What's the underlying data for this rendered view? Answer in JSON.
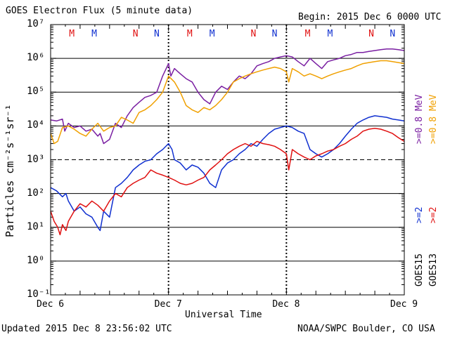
{
  "header": {
    "title": "GOES Electron Flux (5 minute data)",
    "begin": "Begin: 2015 Dec 6 0000 UTC"
  },
  "footer": {
    "updated": "Updated 2015 Dec  8 23:56:02 UTC",
    "credit": "NOAA/SWPC Boulder, CO USA"
  },
  "colors": {
    "goes15_08": "#7a1fa2",
    "goes13_08": "#f0a000",
    "goes15_2": "#1030d0",
    "goes13_2": "#e01010",
    "grid": "#000000"
  },
  "chart_data": {
    "type": "line",
    "title": "GOES Electron Flux (5 minute data)",
    "xlabel": "Universal Time",
    "ylabel": "Particles cm⁻²s⁻¹sr⁻¹",
    "yscale": "log",
    "ylim": [
      0.1,
      10000000
    ],
    "xlim": [
      0,
      3
    ],
    "x_ticks": [
      {
        "x": 0,
        "label": "Dec 6"
      },
      {
        "x": 1,
        "label": "Dec 7"
      },
      {
        "x": 2,
        "label": "Dec 8"
      },
      {
        "x": 3,
        "label": "Dec 9"
      }
    ],
    "y_tick_labels": [
      {
        "exp": -1,
        "label": "10⁻¹"
      },
      {
        "exp": 0,
        "label": "10⁰"
      },
      {
        "exp": 1,
        "label": "10¹"
      },
      {
        "exp": 2,
        "label": "10²"
      },
      {
        "exp": 3,
        "label": "10³"
      },
      {
        "exp": 4,
        "label": "10⁴"
      },
      {
        "exp": 5,
        "label": "10⁵"
      },
      {
        "exp": 6,
        "label": "10⁶"
      },
      {
        "exp": 7,
        "label": "10⁷"
      }
    ],
    "threshold": 1000,
    "markers": [
      {
        "x": 0.18,
        "label": "M",
        "sat": "GOES13"
      },
      {
        "x": 0.37,
        "label": "M",
        "sat": "GOES15"
      },
      {
        "x": 0.72,
        "label": "N",
        "sat": "GOES13"
      },
      {
        "x": 0.9,
        "label": "N",
        "sat": "GOES15"
      },
      {
        "x": 1.18,
        "label": "M",
        "sat": "GOES13"
      },
      {
        "x": 1.37,
        "label": "M",
        "sat": "GOES15"
      },
      {
        "x": 1.72,
        "label": "N",
        "sat": "GOES13"
      },
      {
        "x": 1.9,
        "label": "N",
        "sat": "GOES15"
      },
      {
        "x": 2.18,
        "label": "M",
        "sat": "GOES13"
      },
      {
        "x": 2.37,
        "label": "M",
        "sat": "GOES15"
      },
      {
        "x": 2.72,
        "label": "N",
        "sat": "GOES13"
      },
      {
        "x": 2.9,
        "label": "N",
        "sat": "GOES15"
      }
    ],
    "legend": {
      "labels": [
        {
          "text": ">=0.8  MeV",
          "color": "#7a1fa2"
        },
        {
          "text": ">=0.8  MeV",
          "color": "#f0a000"
        },
        {
          "text": ">=2",
          "color": "#1030d0"
        },
        {
          "text": ">=2",
          "color": "#e01010"
        }
      ],
      "sats": [
        "GOES15",
        "GOES13"
      ]
    },
    "series": [
      {
        "name": "GOES15 >=0.8 MeV",
        "color": "#7a1fa2",
        "x": [
          0,
          0.05,
          0.1,
          0.12,
          0.15,
          0.2,
          0.25,
          0.3,
          0.35,
          0.4,
          0.42,
          0.45,
          0.5,
          0.55,
          0.6,
          0.65,
          0.7,
          0.75,
          0.8,
          0.85,
          0.9,
          0.95,
          1.0,
          1.02,
          1.05,
          1.1,
          1.15,
          1.2,
          1.25,
          1.3,
          1.35,
          1.4,
          1.45,
          1.5,
          1.55,
          1.6,
          1.65,
          1.7,
          1.75,
          1.8,
          1.85,
          1.9,
          1.95,
          2.0,
          2.05,
          2.1,
          2.15,
          2.2,
          2.25,
          2.3,
          2.35,
          2.4,
          2.45,
          2.5,
          2.55,
          2.6,
          2.65,
          2.7,
          2.75,
          2.8,
          2.85,
          2.9,
          2.95,
          3.0
        ],
        "y": [
          15000,
          14000,
          16000,
          7000,
          12000,
          9000,
          10000,
          7000,
          8000,
          5000,
          6000,
          3000,
          4000,
          12000,
          9000,
          20000,
          35000,
          50000,
          70000,
          80000,
          100000,
          300000,
          700000,
          300000,
          500000,
          350000,
          250000,
          200000,
          100000,
          60000,
          45000,
          100000,
          150000,
          120000,
          200000,
          300000,
          250000,
          350000,
          600000,
          700000,
          800000,
          1000000,
          1100000,
          1200000,
          1100000,
          800000,
          600000,
          1000000,
          700000,
          500000,
          800000,
          900000,
          1000000,
          1200000,
          1300000,
          1500000,
          1500000,
          1600000,
          1700000,
          1800000,
          1900000,
          1900000,
          1800000,
          1700000
        ]
      },
      {
        "name": "GOES13 >=0.8 MeV",
        "color": "#f0a000",
        "x": [
          0,
          0.03,
          0.06,
          0.1,
          0.15,
          0.2,
          0.25,
          0.3,
          0.35,
          0.4,
          0.45,
          0.5,
          0.55,
          0.6,
          0.65,
          0.7,
          0.75,
          0.8,
          0.85,
          0.9,
          0.95,
          1.0,
          1.05,
          1.1,
          1.15,
          1.2,
          1.25,
          1.3,
          1.35,
          1.4,
          1.45,
          1.5,
          1.55,
          1.6,
          1.65,
          1.7,
          1.75,
          1.8,
          1.85,
          1.9,
          1.95,
          2.0,
          2.02,
          2.05,
          2.1,
          2.15,
          2.2,
          2.25,
          2.3,
          2.35,
          2.4,
          2.45,
          2.5,
          2.55,
          2.6,
          2.65,
          2.7,
          2.75,
          2.8,
          2.85,
          2.9,
          2.95,
          3.0
        ],
        "y": [
          6000,
          3000,
          3500,
          9000,
          10000,
          8000,
          6000,
          5000,
          8000,
          12000,
          7000,
          9000,
          10000,
          18000,
          15000,
          12000,
          25000,
          30000,
          40000,
          60000,
          100000,
          300000,
          200000,
          100000,
          40000,
          30000,
          25000,
          35000,
          30000,
          40000,
          60000,
          100000,
          200000,
          250000,
          300000,
          350000,
          400000,
          450000,
          500000,
          550000,
          500000,
          400000,
          200000,
          500000,
          400000,
          300000,
          350000,
          300000,
          250000,
          300000,
          350000,
          400000,
          450000,
          500000,
          600000,
          700000,
          750000,
          800000,
          850000,
          850000,
          800000,
          750000,
          700000
        ]
      },
      {
        "name": "GOES15 >=2",
        "color": "#1030d0",
        "x": [
          0,
          0.05,
          0.1,
          0.13,
          0.15,
          0.2,
          0.25,
          0.3,
          0.35,
          0.4,
          0.42,
          0.45,
          0.5,
          0.55,
          0.6,
          0.65,
          0.7,
          0.75,
          0.8,
          0.85,
          0.9,
          0.95,
          1.0,
          1.03,
          1.05,
          1.1,
          1.15,
          1.2,
          1.25,
          1.3,
          1.35,
          1.4,
          1.45,
          1.5,
          1.55,
          1.6,
          1.65,
          1.7,
          1.75,
          1.8,
          1.85,
          1.9,
          1.95,
          2.0,
          2.05,
          2.1,
          2.15,
          2.2,
          2.25,
          2.3,
          2.35,
          2.4,
          2.45,
          2.5,
          2.55,
          2.6,
          2.65,
          2.7,
          2.75,
          2.8,
          2.85,
          2.9,
          2.95,
          3.0
        ],
        "y": [
          150,
          120,
          80,
          100,
          60,
          30,
          40,
          25,
          20,
          10,
          8,
          30,
          20,
          150,
          200,
          300,
          500,
          700,
          900,
          1000,
          1500,
          2000,
          3000,
          2000,
          1000,
          800,
          500,
          700,
          600,
          400,
          200,
          150,
          500,
          800,
          1000,
          1500,
          2000,
          3000,
          2500,
          4000,
          6000,
          8000,
          9000,
          10000,
          9000,
          7000,
          6000,
          2000,
          1500,
          1200,
          1500,
          2000,
          3000,
          5000,
          8000,
          12000,
          15000,
          18000,
          20000,
          19000,
          18000,
          16000,
          15000,
          14000
        ]
      },
      {
        "name": "GOES13 >=2",
        "color": "#e01010",
        "x": [
          0,
          0.03,
          0.06,
          0.08,
          0.1,
          0.13,
          0.15,
          0.2,
          0.25,
          0.3,
          0.35,
          0.4,
          0.45,
          0.5,
          0.55,
          0.6,
          0.65,
          0.7,
          0.75,
          0.8,
          0.85,
          0.9,
          0.95,
          1.0,
          1.05,
          1.1,
          1.15,
          1.2,
          1.25,
          1.3,
          1.35,
          1.4,
          1.45,
          1.5,
          1.55,
          1.6,
          1.65,
          1.7,
          1.75,
          1.8,
          1.85,
          1.9,
          1.95,
          2.0,
          2.02,
          2.05,
          2.1,
          2.15,
          2.2,
          2.25,
          2.3,
          2.35,
          2.4,
          2.45,
          2.5,
          2.55,
          2.6,
          2.65,
          2.7,
          2.75,
          2.8,
          2.85,
          2.9,
          2.95,
          3.0
        ],
        "y": [
          30,
          15,
          10,
          6,
          12,
          8,
          15,
          30,
          50,
          40,
          60,
          45,
          30,
          60,
          100,
          80,
          150,
          200,
          250,
          300,
          500,
          400,
          350,
          300,
          250,
          200,
          180,
          200,
          250,
          300,
          500,
          700,
          1000,
          1500,
          2000,
          2500,
          3000,
          2500,
          3500,
          3000,
          2800,
          2500,
          2000,
          1500,
          500,
          2000,
          1500,
          1200,
          1000,
          1300,
          1500,
          1800,
          2000,
          2500,
          3000,
          4000,
          5000,
          7000,
          8000,
          8500,
          8000,
          7000,
          6000,
          4500,
          3500
        ]
      }
    ]
  }
}
